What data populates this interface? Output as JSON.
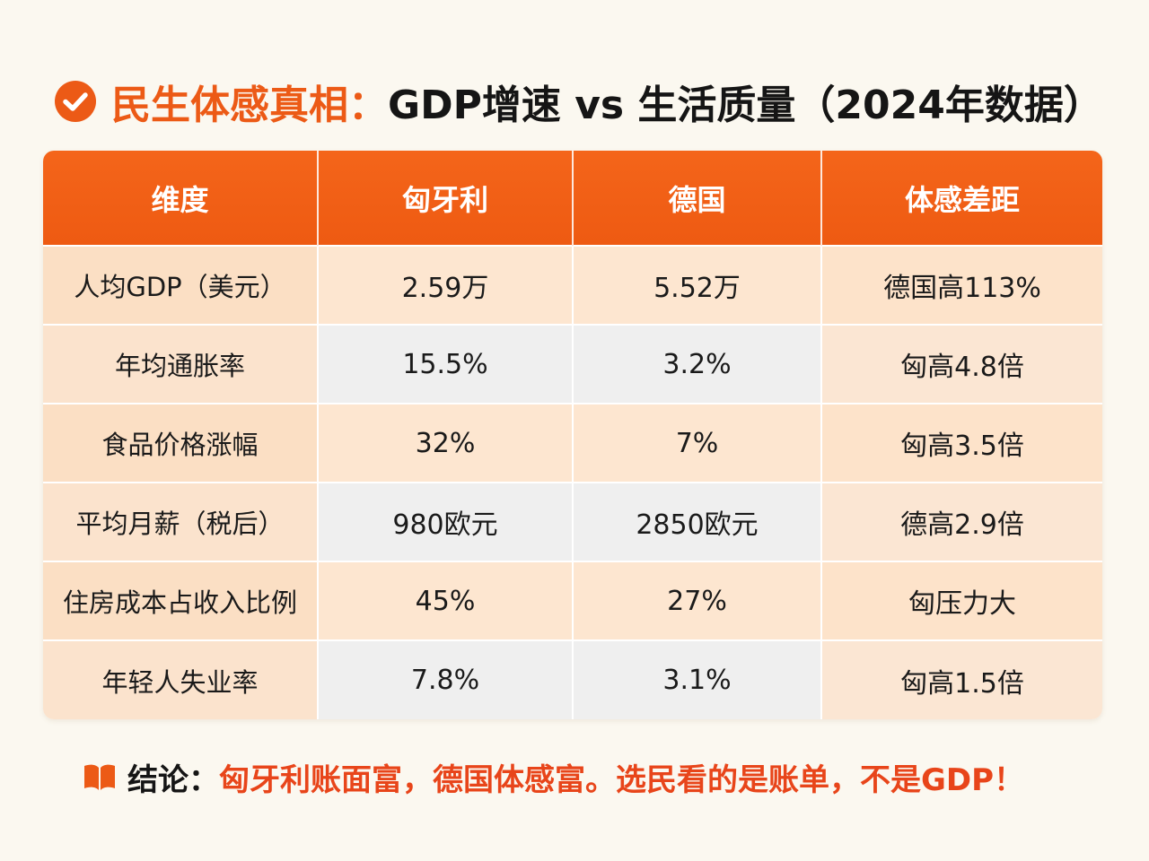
{
  "title": {
    "icon": "check-circle-icon",
    "accent": "民生体感真相：",
    "main": "GDP增速 vs 生活质量（2024年数据）"
  },
  "table": {
    "headers": [
      "维度",
      "匈牙利",
      "德国",
      "体感差距"
    ],
    "rows": [
      [
        "人均GDP（美元）",
        "2.59万",
        "5.52万",
        "德国高113%"
      ],
      [
        "年均通胀率",
        "15.5%",
        "3.2%",
        "匈高4.8倍"
      ],
      [
        "食品价格涨幅",
        "32%",
        "7%",
        "匈高3.5倍"
      ],
      [
        "平均月薪（税后）",
        "980欧元",
        "2850欧元",
        "德高2.9倍"
      ],
      [
        "住房成本占收入比例",
        "45%",
        "27%",
        "匈压力大"
      ],
      [
        "年轻人失业率",
        "7.8%",
        "3.1%",
        "匈高1.5倍"
      ]
    ]
  },
  "conclusion": {
    "icon": "book-icon",
    "label": "结论：",
    "text": "匈牙利账面富，德国体感富。选民看的是账单，不是GDP！"
  },
  "colors": {
    "accent": "#ec5a16",
    "header_bg": "#f1601a",
    "conclusion_text": "#e8451a",
    "background": "#fbf8f0"
  }
}
